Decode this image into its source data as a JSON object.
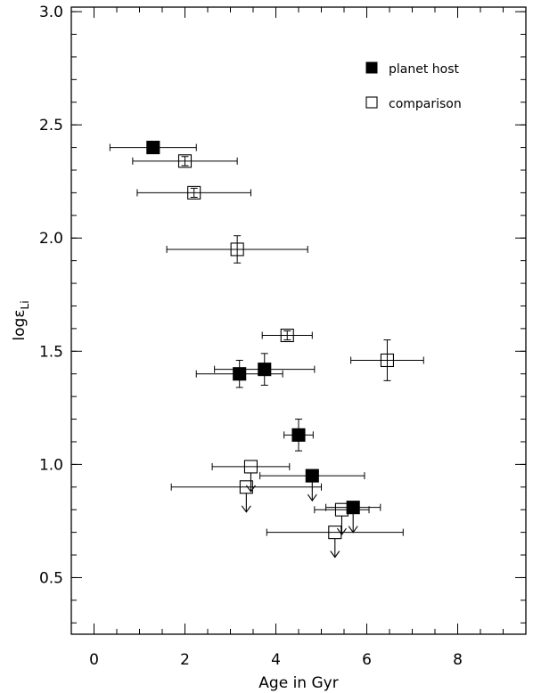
{
  "chart_data": {
    "type": "scatter",
    "title": "",
    "xlabel": "Age in Gyr",
    "ylabel": "logε",
    "ylabel_subscript": "Li",
    "xlim": [
      -0.5,
      9.5
    ],
    "ylim": [
      0.25,
      3.02
    ],
    "x_ticks": [
      0,
      2,
      4,
      6,
      8
    ],
    "x_tick_labels": [
      "0",
      "2",
      "4",
      "6",
      "8"
    ],
    "y_ticks": [
      0.5,
      1.0,
      1.5,
      2.0,
      2.5,
      3.0
    ],
    "y_tick_labels": [
      "0.5",
      "1.0",
      "1.5",
      "2.0",
      "2.5",
      "3.0"
    ],
    "x_minor_step": 0.5,
    "y_minor_step": 0.1,
    "grid": false,
    "legend_position": "top-right",
    "series": [
      {
        "name": "planet host",
        "marker": "filled-square",
        "points": [
          {
            "x": 1.3,
            "y": 2.4,
            "x_err": 0.95,
            "y_err": 0,
            "upper_limit": false
          },
          {
            "x": 3.2,
            "y": 1.4,
            "x_err": 0.95,
            "y_err": 0.06,
            "upper_limit": false
          },
          {
            "x": 3.75,
            "y": 1.42,
            "x_err": 1.1,
            "y_err": 0.07,
            "upper_limit": false
          },
          {
            "x": 4.5,
            "y": 1.13,
            "x_err": 0.32,
            "y_err": 0.07,
            "upper_limit": false
          },
          {
            "x": 4.8,
            "y": 0.95,
            "x_err": 1.15,
            "y_err": 0,
            "upper_limit": true
          },
          {
            "x": 5.7,
            "y": 0.81,
            "x_err": 0.6,
            "y_err": 0,
            "upper_limit": true
          }
        ]
      },
      {
        "name": "comparison",
        "marker": "open-square",
        "points": [
          {
            "x": 2.0,
            "y": 2.34,
            "x_err": 1.15,
            "y_err": 0.02,
            "upper_limit": false
          },
          {
            "x": 2.2,
            "y": 2.2,
            "x_err": 1.25,
            "y_err": 0.02,
            "upper_limit": false
          },
          {
            "x": 3.15,
            "y": 1.95,
            "x_err": 1.55,
            "y_err": 0.06,
            "upper_limit": false
          },
          {
            "x": 4.25,
            "y": 1.57,
            "x_err": 0.55,
            "y_err": 0.02,
            "upper_limit": false
          },
          {
            "x": 6.45,
            "y": 1.46,
            "x_err": 0.8,
            "y_err": 0.09,
            "upper_limit": false
          },
          {
            "x": 3.45,
            "y": 0.99,
            "x_err": 0.85,
            "y_err": 0,
            "upper_limit": true
          },
          {
            "x": 3.35,
            "y": 0.9,
            "x_err": 1.65,
            "y_err": 0,
            "upper_limit": true
          },
          {
            "x": 5.45,
            "y": 0.8,
            "x_err": 0.6,
            "y_err": 0,
            "upper_limit": true
          },
          {
            "x": 5.3,
            "y": 0.7,
            "x_err": 1.5,
            "y_err": 0,
            "upper_limit": true
          }
        ]
      }
    ]
  }
}
